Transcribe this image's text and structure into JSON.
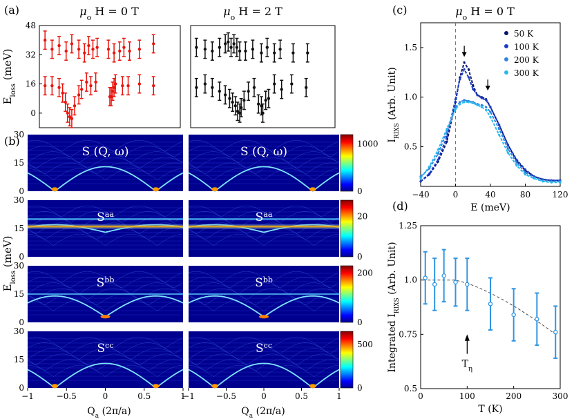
{
  "panel_labels": {
    "a": "(a)",
    "b": "(b)",
    "c": "(c)",
    "d": "(d)"
  },
  "colors": {
    "red": "#e8140c",
    "black": "#111111",
    "s50": "#0a1470",
    "s100": "#1a3ec8",
    "s200": "#2e86e0",
    "s300": "#27b9ee",
    "d": "#2f95e3"
  },
  "chart_data": [
    {
      "id": "a-left",
      "type": "scatter",
      "title_main": "μ",
      "title_sub": "o",
      "title_rest": " H = 0 T",
      "ylabel_main": "E",
      "ylabel_sub": "loss",
      "ylabel_unit": " (meV)",
      "xlim": [
        -1,
        1
      ],
      "ylim": [
        -8,
        48
      ],
      "yticks": [
        0,
        16,
        32,
        48
      ],
      "series": [
        {
          "color": "red",
          "x": [
            -0.92,
            -0.82,
            -0.72,
            -0.67,
            -0.63,
            -0.6,
            -0.57,
            -0.54,
            -0.5,
            -0.44,
            -0.4,
            -0.33,
            -0.27,
            -0.2,
            0.0,
            0.02,
            0.04,
            0.06,
            0.08,
            0.18,
            0.26,
            0.42,
            0.62
          ],
          "y": [
            15,
            15,
            14,
            11,
            6,
            0,
            -2,
            -3,
            4,
            10,
            13,
            17,
            15,
            17,
            9,
            9,
            12,
            14,
            16,
            15,
            15,
            16,
            15
          ]
        },
        {
          "color": "red",
          "x": [
            -0.92,
            -0.82,
            -0.72,
            -0.62,
            -0.54,
            -0.44,
            -0.36,
            -0.3,
            -0.24,
            -0.18,
            -0.02,
            0.06,
            0.14,
            0.2,
            0.28,
            0.42,
            0.62
          ],
          "y": [
            40,
            35,
            37,
            34,
            38,
            35,
            33,
            37,
            35,
            36,
            35,
            33,
            34,
            36,
            34,
            35,
            38
          ]
        }
      ]
    },
    {
      "id": "a-right",
      "type": "scatter",
      "title_main": "μ",
      "title_sub": "o",
      "title_rest": " H = 2 T",
      "xlim": [
        -1,
        1
      ],
      "ylim": [
        -8,
        48
      ],
      "yticks": [
        0,
        16,
        32,
        48
      ],
      "series": [
        {
          "color": "black",
          "x": [
            -0.92,
            -0.8,
            -0.7,
            -0.6,
            -0.52,
            -0.46,
            -0.42,
            -0.38,
            -0.35,
            -0.32,
            -0.3,
            -0.26,
            -0.2,
            -0.12,
            -0.06,
            -0.02,
            0.0,
            0.04,
            0.08,
            0.16,
            0.26,
            0.4,
            0.6
          ],
          "y": [
            14,
            16,
            14,
            12,
            10,
            8,
            6,
            4,
            1,
            0,
            3,
            7,
            12,
            14,
            5,
            4,
            0,
            7,
            8,
            16,
            13,
            16,
            14
          ]
        },
        {
          "color": "black",
          "x": [
            -0.92,
            -0.8,
            -0.7,
            -0.6,
            -0.52,
            -0.48,
            -0.44,
            -0.4,
            -0.36,
            -0.32,
            -0.24,
            -0.14,
            -0.02,
            0.06,
            0.16,
            0.24,
            0.42,
            0.62
          ],
          "y": [
            36,
            35,
            34,
            36,
            38,
            39,
            36,
            38,
            36,
            34,
            34,
            35,
            33,
            36,
            33,
            35,
            33,
            33
          ]
        }
      ]
    },
    {
      "id": "b",
      "type": "heatmap",
      "ylabel_main": "E",
      "ylabel_sub": "loss",
      "ylabel_unit": " (meV)",
      "xlabel_main": "Q",
      "xlabel_sub": "a",
      "xlabel_unit": " (2π/a)",
      "xlim": [
        -1,
        1
      ],
      "ylim": [
        0,
        30
      ],
      "xticks": [
        -1,
        -0.5,
        0,
        0.5,
        1
      ],
      "xtick_labels": [
        "−1",
        "−0.5",
        "0",
        "0.5",
        "1"
      ],
      "yticks": [
        0,
        15,
        30
      ],
      "rows": [
        {
          "label_main": "S (Q, ω)",
          "label_sup": "",
          "colorbar_ticks": [
            0,
            1000
          ],
          "colorbar_max": 1200
        },
        {
          "label_main": "S",
          "label_sup": "aa",
          "colorbar_ticks": [
            0,
            20
          ],
          "colorbar_max": 28
        },
        {
          "label_main": "S",
          "label_sup": "bb",
          "colorbar_ticks": [
            0,
            200
          ],
          "colorbar_max": 230
        },
        {
          "label_main": "S",
          "label_sup": "cc",
          "colorbar_ticks": [
            0,
            500
          ],
          "colorbar_max": 650
        }
      ]
    },
    {
      "id": "c",
      "type": "line",
      "title_main": "μ",
      "title_sub": "o",
      "title_rest": " H = 0 T",
      "xlabel": "E (meV)",
      "ylabel_main": "I",
      "ylabel_sub": "RIXS",
      "ylabel_unit": " (Arb. Unit)",
      "xlim": [
        -40,
        120
      ],
      "ylim": [
        0.1,
        1.75
      ],
      "xticks": [
        -40,
        0,
        40,
        80,
        120
      ],
      "yticks": [
        0.5,
        1.0,
        1.5
      ],
      "ytick_labels": [
        "0.5",
        "1.0",
        "1.5"
      ],
      "legend_position": "top-right",
      "series": [
        {
          "name": "50 K",
          "color": "s50",
          "x": [
            -40,
            -30,
            -20,
            -10,
            0,
            5,
            10,
            15,
            20,
            25,
            30,
            35,
            40,
            50,
            60,
            70,
            80,
            90,
            100,
            110,
            120
          ],
          "y": [
            0.15,
            0.22,
            0.35,
            0.55,
            0.95,
            1.2,
            1.35,
            1.28,
            1.12,
            1.02,
            1.0,
            0.98,
            0.9,
            0.72,
            0.52,
            0.36,
            0.26,
            0.2,
            0.17,
            0.16,
            0.16
          ]
        },
        {
          "name": "100 K",
          "color": "s100",
          "x": [
            -40,
            -30,
            -20,
            -10,
            0,
            5,
            10,
            15,
            20,
            25,
            30,
            35,
            40,
            50,
            60,
            70,
            80,
            90,
            100,
            110,
            120
          ],
          "y": [
            0.15,
            0.23,
            0.37,
            0.6,
            0.98,
            1.18,
            1.28,
            1.2,
            1.08,
            1.02,
            0.99,
            0.97,
            0.9,
            0.72,
            0.52,
            0.37,
            0.27,
            0.2,
            0.17,
            0.16,
            0.16
          ]
        },
        {
          "name": "200 K",
          "color": "s200",
          "x": [
            -40,
            -30,
            -20,
            -10,
            0,
            5,
            10,
            15,
            20,
            25,
            30,
            35,
            40,
            50,
            60,
            70,
            80,
            90,
            100,
            110,
            120
          ],
          "y": [
            0.2,
            0.28,
            0.43,
            0.65,
            0.9,
            0.95,
            0.97,
            0.96,
            0.95,
            0.93,
            0.92,
            0.9,
            0.85,
            0.68,
            0.48,
            0.34,
            0.24,
            0.19,
            0.16,
            0.15,
            0.15
          ]
        },
        {
          "name": "300 K",
          "color": "s300",
          "x": [
            -40,
            -30,
            -20,
            -10,
            0,
            5,
            10,
            15,
            20,
            25,
            30,
            35,
            40,
            50,
            60,
            70,
            80,
            90,
            100,
            110,
            120
          ],
          "y": [
            0.18,
            0.3,
            0.47,
            0.68,
            0.88,
            0.93,
            0.95,
            0.95,
            0.94,
            0.92,
            0.9,
            0.87,
            0.8,
            0.62,
            0.44,
            0.31,
            0.22,
            0.18,
            0.15,
            0.14,
            0.14
          ]
        }
      ],
      "arrows": [
        {
          "x": 10,
          "y": 1.42
        },
        {
          "x": 37,
          "y": 1.08
        }
      ]
    },
    {
      "id": "d",
      "type": "scatter",
      "xlabel": "T (K)",
      "ylabel_prefix": "Integrated  I",
      "ylabel_sub": "RIXS",
      "ylabel_unit": " (Arb. Unit)",
      "xlim": [
        0,
        300
      ],
      "ylim": [
        0.5,
        1.25
      ],
      "xticks": [
        0,
        100,
        200,
        300
      ],
      "yticks": [
        0.5,
        0.75,
        1.0,
        1.25
      ],
      "ytick_labels": [
        "0.5",
        "0.75",
        "1.0",
        "1.25"
      ],
      "x": [
        10,
        30,
        50,
        75,
        100,
        150,
        200,
        250,
        290
      ],
      "y": [
        1.01,
        0.98,
        1.02,
        0.99,
        0.98,
        0.89,
        0.84,
        0.82,
        0.76
      ],
      "yerr": [
        0.12,
        0.12,
        0.12,
        0.11,
        0.12,
        0.12,
        0.12,
        0.12,
        0.12
      ],
      "annotation_main": "T",
      "annotation_sub": "η",
      "annotation_x": 100
    }
  ]
}
